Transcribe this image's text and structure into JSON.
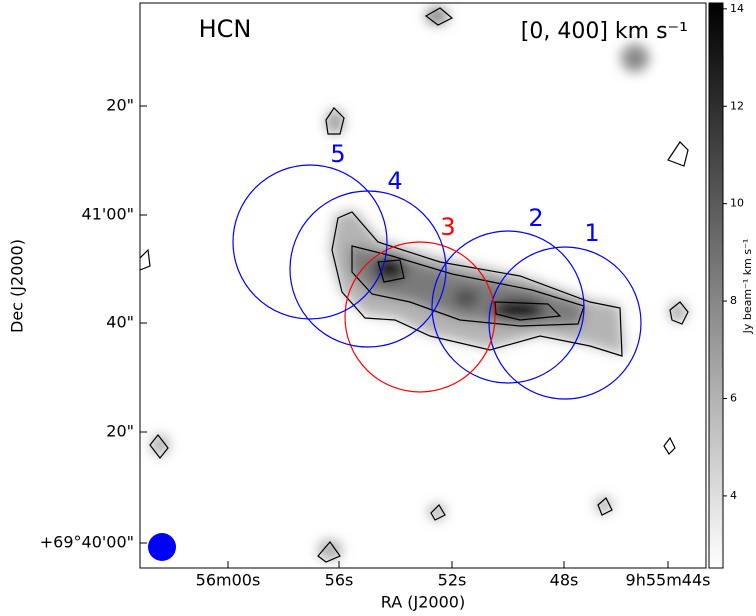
{
  "title": "HCN",
  "velocity_range": "[0, 400] km s⁻¹",
  "x_axis": {
    "label": "RA (J2000)",
    "ticks": [
      "56m00s",
      "56s",
      "52s",
      "48s",
      "9h55m44s"
    ]
  },
  "y_axis": {
    "label": "Dec (J2000)",
    "ticks": [
      "+69°40'00\"",
      "20\"",
      "40\"",
      "41'00\"",
      "20\""
    ]
  },
  "regions": [
    "1",
    "2",
    "3",
    "4",
    "5"
  ],
  "colorbar": {
    "label": "Jy beam⁻¹ km s⁻¹",
    "lim": [
      2.52,
      14.12
    ],
    "ticks": [
      4,
      6,
      8,
      10,
      12,
      14
    ]
  }
}
